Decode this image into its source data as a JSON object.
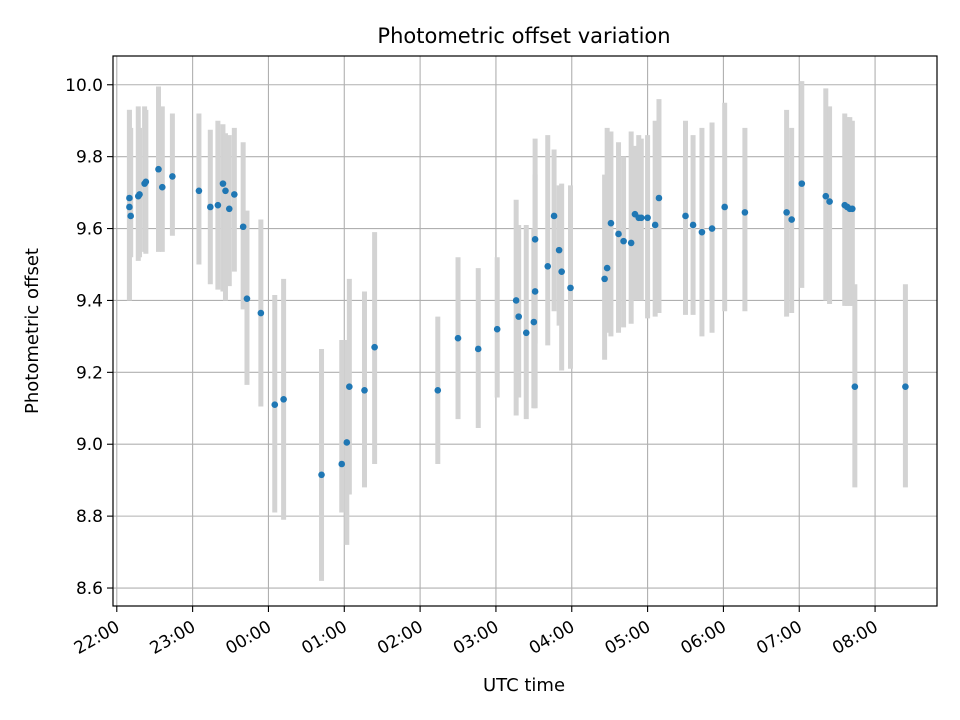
{
  "chart_data": {
    "type": "scatter",
    "title": "Photometric offset variation",
    "xlabel": "UTC time",
    "ylabel": "Photometric offset",
    "grid": true,
    "x_ticks": [
      "22:00",
      "23:00",
      "00:00",
      "01:00",
      "02:00",
      "03:00",
      "04:00",
      "05:00",
      "06:00",
      "07:00",
      "08:00"
    ],
    "y_ticks": [
      "8.6",
      "8.8",
      "9.0",
      "9.2",
      "9.4",
      "9.6",
      "9.8",
      "10.0"
    ],
    "ylim": [
      8.55,
      10.08
    ],
    "xlim": [
      "21:57",
      "08:49"
    ],
    "colors": {
      "point": "#1f77b4",
      "errorbar": "#d3d3d3",
      "grid": "#b0b0b0"
    },
    "series": [
      {
        "x": [
          "22:10",
          "22:10",
          "22:11",
          "22:17",
          "22:18",
          "22:22",
          "22:23",
          "22:33",
          "22:36",
          "22:44",
          "23:05",
          "23:14",
          "23:20",
          "23:24",
          "23:26",
          "23:29",
          "23:33",
          "23:40",
          "23:43",
          "23:54",
          "24:05",
          "24:12",
          "24:42",
          "24:58",
          "25:02",
          "25:04",
          "25:16",
          "25:24",
          "26:14",
          "26:30",
          "26:46",
          "27:01",
          "27:16",
          "27:18",
          "27:24",
          "27:30",
          "27:31",
          "27:31",
          "27:41",
          "27:46",
          "27:50",
          "27:52",
          "27:59",
          "28:26",
          "28:28",
          "28:31",
          "28:37",
          "28:41",
          "28:47",
          "28:50",
          "28:53",
          "28:55",
          "29:00",
          "29:06",
          "29:09",
          "29:30",
          "29:36",
          "29:43",
          "29:51",
          "30:01",
          "30:17",
          "30:50",
          "30:54",
          "31:02",
          "31:21",
          "31:24",
          "31:36",
          "31:38",
          "31:40",
          "31:42",
          "31:44",
          "32:24"
        ],
        "y": [
          9.685,
          9.66,
          9.635,
          9.69,
          9.695,
          9.725,
          9.73,
          9.765,
          9.715,
          9.745,
          9.705,
          9.66,
          9.665,
          9.725,
          9.705,
          9.655,
          9.695,
          9.605,
          9.405,
          9.365,
          9.11,
          9.125,
          8.915,
          8.945,
          9.005,
          9.16,
          9.15,
          9.27,
          9.15,
          9.295,
          9.265,
          9.32,
          9.4,
          9.355,
          9.31,
          9.34,
          9.425,
          9.57,
          9.495,
          9.635,
          9.54,
          9.48,
          9.435,
          9.46,
          9.49,
          9.615,
          9.585,
          9.565,
          9.56,
          9.64,
          9.63,
          9.63,
          9.63,
          9.61,
          9.685,
          9.635,
          9.61,
          9.59,
          9.6,
          9.66,
          9.645,
          9.645,
          9.625,
          9.725,
          9.69,
          9.675,
          9.665,
          9.66,
          9.655,
          9.655,
          9.16,
          9.16
        ],
        "err_low": [
          9.4,
          9.4,
          9.52,
          9.51,
          9.52,
          9.535,
          9.53,
          9.535,
          9.535,
          9.58,
          9.5,
          9.445,
          9.43,
          9.425,
          9.4,
          9.44,
          9.48,
          9.375,
          9.165,
          9.105,
          8.81,
          8.79,
          8.62,
          8.81,
          8.72,
          8.86,
          8.88,
          8.945,
          8.945,
          9.07,
          9.045,
          9.13,
          9.08,
          9.13,
          9.07,
          9.1,
          9.1,
          9.28,
          9.275,
          9.37,
          9.33,
          9.205,
          9.21,
          9.235,
          9.31,
          9.3,
          9.31,
          9.325,
          9.335,
          9.4,
          9.4,
          9.4,
          9.35,
          9.355,
          9.365,
          9.36,
          9.36,
          9.3,
          9.31,
          9.37,
          9.37,
          9.355,
          9.365,
          9.435,
          9.4,
          9.39,
          9.385,
          9.385,
          9.385,
          9.385,
          8.88,
          8.88
        ],
        "err_high": [
          9.93,
          9.93,
          9.88,
          9.94,
          9.88,
          9.94,
          9.93,
          9.995,
          9.94,
          9.92,
          9.92,
          9.875,
          9.9,
          9.89,
          9.865,
          9.86,
          9.88,
          9.84,
          9.65,
          9.625,
          9.415,
          9.46,
          9.265,
          9.29,
          9.29,
          9.46,
          9.425,
          9.59,
          9.355,
          9.52,
          9.49,
          9.52,
          9.68,
          9.61,
          9.61,
          9.6,
          9.75,
          9.85,
          9.86,
          9.82,
          9.72,
          9.725,
          9.72,
          9.75,
          9.88,
          9.87,
          9.84,
          9.8,
          9.87,
          9.83,
          9.86,
          9.85,
          9.86,
          9.9,
          9.96,
          9.9,
          9.86,
          9.88,
          9.895,
          9.95,
          9.88,
          9.93,
          9.88,
          10.01,
          9.99,
          9.94,
          9.92,
          9.91,
          9.91,
          9.9,
          9.445,
          9.445
        ]
      }
    ]
  }
}
